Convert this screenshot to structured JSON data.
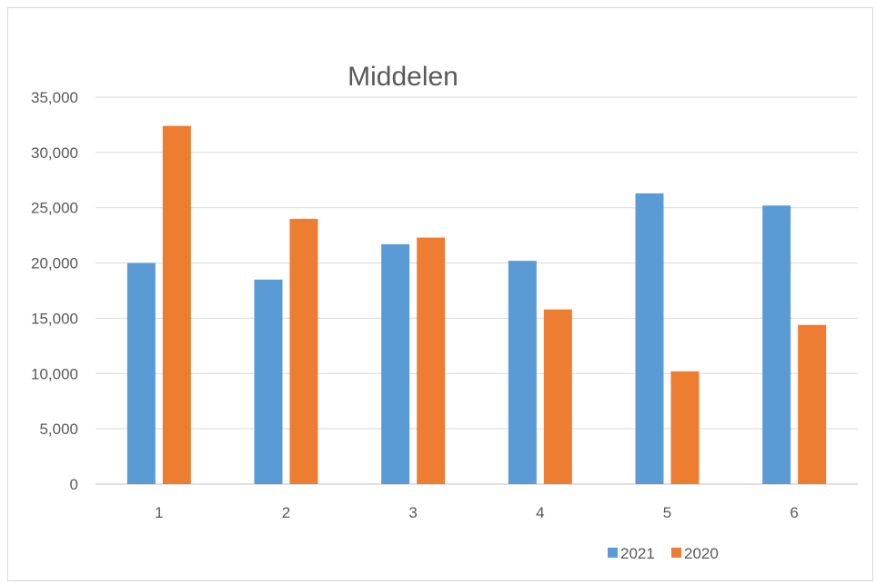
{
  "chart_data": {
    "type": "bar",
    "title": "Middelen",
    "categories": [
      "1",
      "2",
      "3",
      "4",
      "5",
      "6"
    ],
    "series": [
      {
        "name": "2021",
        "color": "#5b9bd5",
        "values": [
          20000,
          18500,
          21700,
          20200,
          26300,
          25200
        ]
      },
      {
        "name": "2020",
        "color": "#ed7d31",
        "values": [
          32400,
          24000,
          22300,
          15800,
          10200,
          14400
        ]
      }
    ],
    "ylim": [
      0,
      35000
    ],
    "yticks": [
      "0",
      "5,000",
      "10,000",
      "15,000",
      "20,000",
      "25,000",
      "30,000",
      "35,000"
    ],
    "grid": true,
    "legend": "bottom-right",
    "xlabel": "",
    "ylabel": ""
  }
}
